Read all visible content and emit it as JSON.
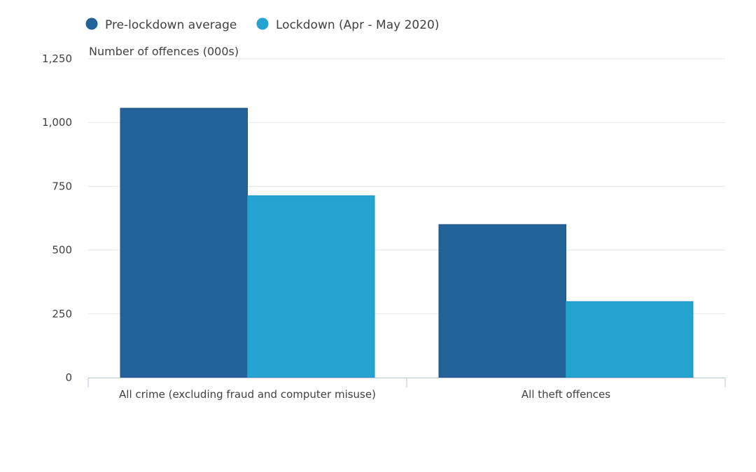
{
  "chart_data": {
    "type": "bar",
    "title": "",
    "ylabel": "Number of offences (000s)",
    "xlabel": "",
    "ylim": [
      0,
      1250
    ],
    "yticks": [
      0,
      250,
      500,
      750,
      1000,
      1250
    ],
    "ytick_labels": [
      "0",
      "250",
      "500",
      "750",
      "1,000",
      "1,250"
    ],
    "categories": [
      "All crime (excluding fraud and computer misuse)",
      "All theft offences"
    ],
    "series": [
      {
        "name": "Pre-lockdown average",
        "values": [
          1056,
          600
        ],
        "color": "#236199"
      },
      {
        "name": "Lockdown (Apr - May 2020)",
        "values": [
          713,
          298
        ],
        "color": "#24a2d0"
      }
    ],
    "legend_position": "top-left",
    "grid": true
  }
}
